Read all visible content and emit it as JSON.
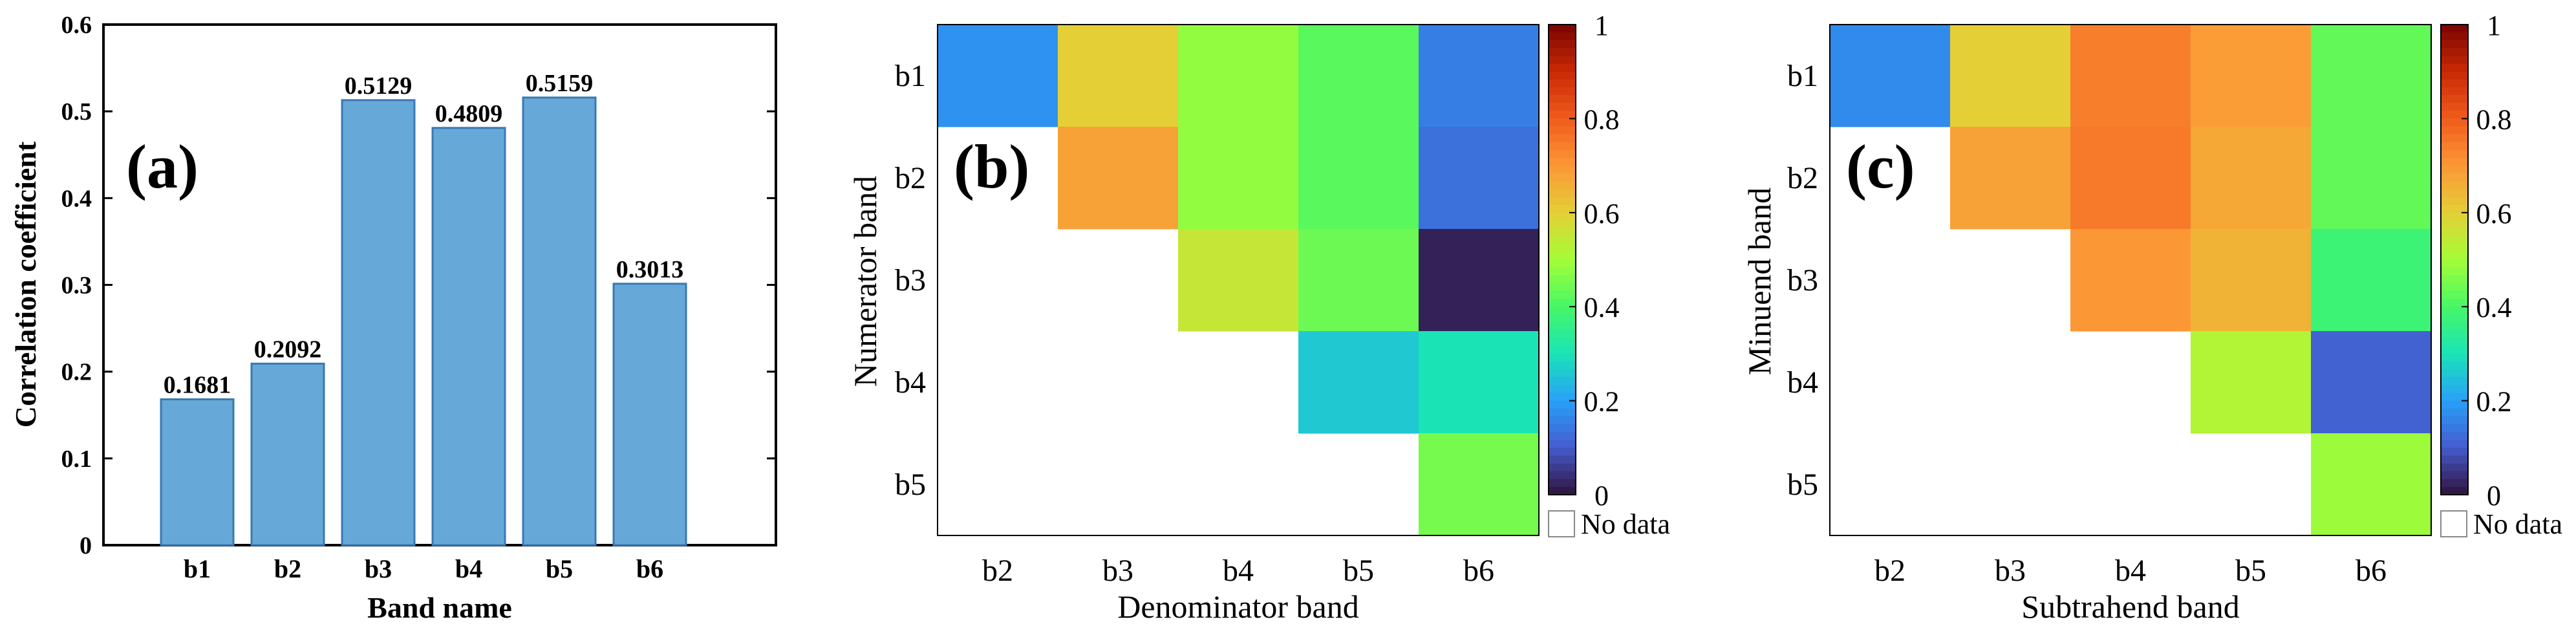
{
  "chart_data": [
    {
      "type": "bar",
      "panel_label": "(a)",
      "categories": [
        "b1",
        "b2",
        "b3",
        "b4",
        "b5",
        "b6"
      ],
      "values": [
        0.1681,
        0.2092,
        0.5129,
        0.4809,
        0.5159,
        0.3013
      ],
      "value_labels": [
        "0.1681",
        "0.2092",
        "0.5129",
        "0.4809",
        "0.5159",
        "0.3013"
      ],
      "xlabel": "Band name",
      "ylabel": "Correlation coefficient",
      "ylim": [
        0,
        0.6
      ],
      "yticks": [
        "0",
        "0.1",
        "0.2",
        "0.3",
        "0.4",
        "0.5",
        "0.6"
      ],
      "bar_color": "#66a8d8",
      "bar_edge": "#3a78b4"
    },
    {
      "type": "heatmap",
      "panel_label": "(b)",
      "x_categories": [
        "b2",
        "b3",
        "b4",
        "b5",
        "b6"
      ],
      "y_categories": [
        "b1",
        "b2",
        "b3",
        "b4",
        "b5"
      ],
      "values": [
        [
          0.18,
          0.6,
          0.48,
          0.42,
          0.15
        ],
        [
          null,
          0.68,
          0.48,
          0.42,
          0.13
        ],
        [
          null,
          null,
          0.55,
          0.44,
          0.02
        ],
        [
          null,
          null,
          null,
          0.26,
          0.3
        ],
        [
          null,
          null,
          null,
          null,
          0.45
        ]
      ],
      "xlabel": "Denominator band",
      "ylabel": "Numerator band",
      "colorbar_ticks": [
        "0",
        "0.2",
        "0.4",
        "0.6",
        "0.8",
        "1"
      ],
      "clim": [
        0,
        1
      ],
      "no_data_label": "No data"
    },
    {
      "type": "heatmap",
      "panel_label": "(c)",
      "x_categories": [
        "b2",
        "b3",
        "b4",
        "b5",
        "b6"
      ],
      "y_categories": [
        "b1",
        "b2",
        "b3",
        "b4",
        "b5"
      ],
      "values": [
        [
          0.17,
          0.6,
          0.74,
          0.69,
          0.43
        ],
        [
          null,
          0.68,
          0.75,
          0.67,
          0.43
        ],
        [
          null,
          null,
          0.7,
          0.65,
          0.38
        ],
        [
          null,
          null,
          null,
          0.52,
          0.11
        ],
        [
          null,
          null,
          null,
          null,
          0.49
        ]
      ],
      "xlabel": "Subtrahend band",
      "ylabel": "Minuend band",
      "colorbar_ticks": [
        "0",
        "0.2",
        "0.4",
        "0.6",
        "0.8",
        "1"
      ],
      "clim": [
        0,
        1
      ],
      "no_data_label": "No data"
    }
  ]
}
